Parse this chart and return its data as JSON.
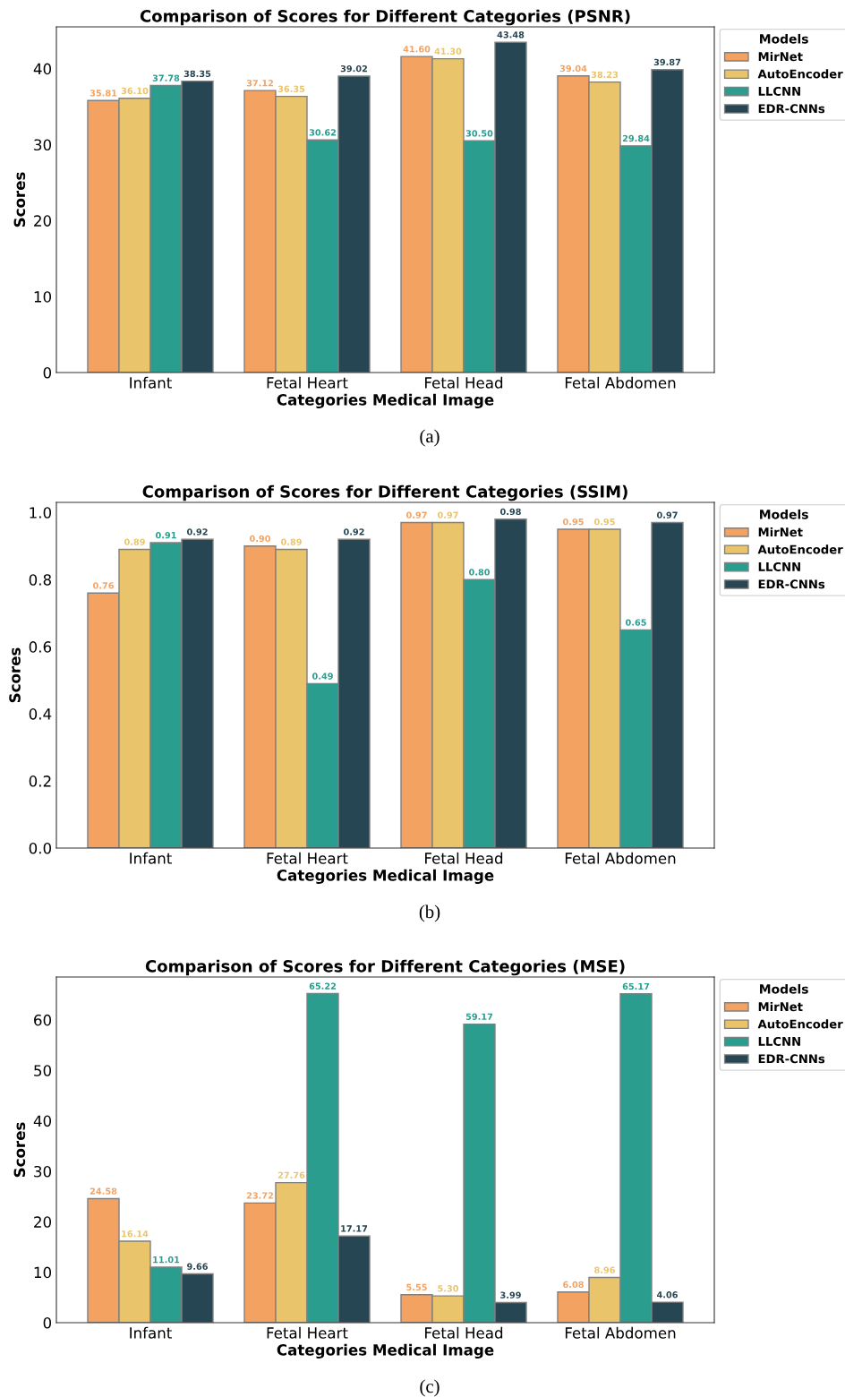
{
  "chart_data": [
    {
      "type": "bar",
      "title": "Comparison of Scores for Different Categories (PSNR)",
      "xlabel": "Categories Medical Image",
      "ylabel": "Scores",
      "legend_title": "Models",
      "legend": "top right",
      "grid": false,
      "categories": [
        "Infant",
        "Fetal Heart",
        "Fetal Head",
        "Fetal Abdomen"
      ],
      "ylim": [
        0,
        45.5
      ],
      "yticks": [
        0,
        10,
        20,
        30,
        40
      ],
      "series": [
        {
          "name": "MirNet",
          "color": "#f4a261",
          "values": [
            35.81,
            37.12,
            41.6,
            39.04
          ],
          "value_labels": [
            "35.81",
            "37.12",
            "41.60",
            "39.04"
          ]
        },
        {
          "name": "AutoEncoder",
          "color": "#e9c46a",
          "values": [
            36.1,
            36.35,
            41.3,
            38.23
          ],
          "value_labels": [
            "36.10",
            "36.35",
            "41.30",
            "38.23"
          ]
        },
        {
          "name": "LLCNN",
          "color": "#2a9d8f",
          "values": [
            37.78,
            30.62,
            30.5,
            29.84
          ],
          "value_labels": [
            "37.78",
            "30.62",
            "30.50",
            "29.84"
          ]
        },
        {
          "name": "EDR-CNNs",
          "color": "#264653",
          "values": [
            38.35,
            39.02,
            43.48,
            39.87
          ],
          "value_labels": [
            "38.35",
            "39.02",
            "43.48",
            "39.87"
          ]
        }
      ],
      "annotations": [
        "(a)"
      ]
    },
    {
      "type": "bar",
      "title": "Comparison of Scores for Different Categories (SSIM)",
      "xlabel": "Categories Medical Image",
      "ylabel": "Scores",
      "legend_title": "Models",
      "legend": "top right",
      "grid": false,
      "categories": [
        "Infant",
        "Fetal Heart",
        "Fetal Head",
        "Fetal Abdomen"
      ],
      "ylim": [
        0,
        1.03
      ],
      "yticks": [
        {
          "value": 0,
          "label": "0.0"
        },
        0.2,
        0.4,
        0.6,
        0.8,
        {
          "value": 1,
          "label": "1.0"
        }
      ],
      "series": [
        {
          "name": "MirNet",
          "color": "#f4a261",
          "values": [
            0.76,
            0.9,
            0.97,
            0.95
          ],
          "value_labels": [
            "0.76",
            "0.90",
            "0.97",
            "0.95"
          ]
        },
        {
          "name": "AutoEncoder",
          "color": "#e9c46a",
          "values": [
            0.89,
            0.89,
            0.97,
            0.95
          ],
          "value_labels": [
            "0.89",
            "0.89",
            "0.97",
            "0.95"
          ]
        },
        {
          "name": "LLCNN",
          "color": "#2a9d8f",
          "values": [
            0.91,
            0.49,
            0.8,
            0.65
          ],
          "value_labels": [
            "0.91",
            "0.49",
            "0.80",
            "0.65"
          ]
        },
        {
          "name": "EDR-CNNs",
          "color": "#264653",
          "values": [
            0.92,
            0.92,
            0.98,
            0.97
          ],
          "value_labels": [
            "0.92",
            "0.92",
            "0.98",
            "0.97"
          ]
        }
      ],
      "annotations": [
        "(b)"
      ]
    },
    {
      "type": "bar",
      "title": "Comparison of Scores for Different Categories (MSE)",
      "xlabel": "Categories Medical Image",
      "ylabel": "Scores",
      "legend_title": "Models",
      "legend": "top right",
      "grid": false,
      "categories": [
        "Infant",
        "Fetal Heart",
        "Fetal Head",
        "Fetal Abdomen"
      ],
      "ylim": [
        0,
        68.5
      ],
      "yticks": [
        0,
        10,
        20,
        30,
        40,
        50,
        60
      ],
      "series": [
        {
          "name": "MirNet",
          "color": "#f4a261",
          "values": [
            24.58,
            23.72,
            5.55,
            6.08
          ],
          "value_labels": [
            "24.58",
            "23.72",
            "5.55",
            "6.08"
          ]
        },
        {
          "name": "AutoEncoder",
          "color": "#e9c46a",
          "values": [
            16.14,
            27.76,
            5.3,
            8.96
          ],
          "value_labels": [
            "16.14",
            "27.76",
            "5.30",
            "8.96"
          ]
        },
        {
          "name": "LLCNN",
          "color": "#2a9d8f",
          "values": [
            11.01,
            65.22,
            59.17,
            65.17
          ],
          "value_labels": [
            "11.01",
            "65.22",
            "59.17",
            "65.17"
          ]
        },
        {
          "name": "EDR-CNNs",
          "color": "#264653",
          "values": [
            9.66,
            17.17,
            3.99,
            4.06
          ],
          "value_labels": [
            "9.66",
            "17.17",
            "3.99",
            "4.06"
          ]
        }
      ],
      "annotations": [
        "(c)"
      ]
    }
  ]
}
